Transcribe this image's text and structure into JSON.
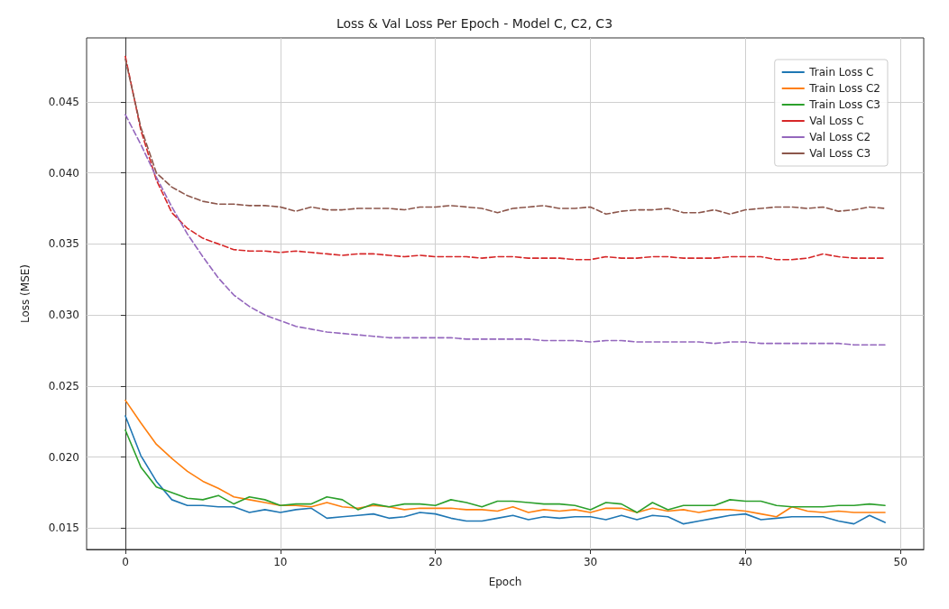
{
  "chart_data": {
    "type": "line",
    "title": "Loss & Val Loss Per Epoch - Model C, C2, C3",
    "xlabel": "Epoch",
    "ylabel": "Loss (MSE)",
    "x": [
      0,
      1,
      2,
      3,
      4,
      5,
      6,
      7,
      8,
      9,
      10,
      11,
      12,
      13,
      14,
      15,
      16,
      17,
      18,
      19,
      20,
      21,
      22,
      23,
      24,
      25,
      26,
      27,
      28,
      29,
      30,
      31,
      32,
      33,
      34,
      35,
      36,
      37,
      38,
      39,
      40,
      41,
      42,
      43,
      44,
      45,
      46,
      47,
      48,
      49
    ],
    "xlim": [
      -2.5,
      51.5
    ],
    "xticks": [
      0,
      10,
      20,
      30,
      40,
      50
    ],
    "ylim": [
      0.0135,
      0.0495
    ],
    "yticks": [
      0.015,
      {
        "value": 0.02,
        "label": "0.020"
      },
      0.025,
      {
        "value": 0.03,
        "label": "0.030"
      },
      0.035,
      {
        "value": 0.04,
        "label": "0.040"
      },
      0.045
    ],
    "grid": true,
    "legend": "top right",
    "marker": "none",
    "series": [
      {
        "name": "Train Loss C",
        "color": "#1f77b4",
        "line_style": "solid",
        "values": [
          0.0229,
          0.0201,
          0.0183,
          0.017,
          0.0166,
          0.0166,
          0.0165,
          0.0165,
          0.0161,
          0.0163,
          0.0161,
          0.0163,
          0.0164,
          0.0157,
          0.0158,
          0.0159,
          0.016,
          0.0157,
          0.0158,
          0.0161,
          0.016,
          0.0157,
          0.0155,
          0.0155,
          0.0157,
          0.0159,
          0.0156,
          0.0158,
          0.0157,
          0.0158,
          0.0158,
          0.0156,
          0.0159,
          0.0156,
          0.0159,
          0.0158,
          0.0153,
          0.0155,
          0.0157,
          0.0159,
          0.016,
          0.0156,
          0.0157,
          0.0158,
          0.0158,
          0.0158,
          0.0155,
          0.0153,
          0.0159,
          0.0154
        ]
      },
      {
        "name": "Train Loss C2",
        "color": "#ff7f0e",
        "line_style": "solid",
        "values": [
          0.024,
          0.0224,
          0.0209,
          0.0199,
          0.019,
          0.0183,
          0.0178,
          0.0172,
          0.017,
          0.0168,
          0.0166,
          0.0166,
          0.0165,
          0.0168,
          0.0165,
          0.0164,
          0.0166,
          0.0165,
          0.0163,
          0.0164,
          0.0164,
          0.0164,
          0.0163,
          0.0163,
          0.0162,
          0.0165,
          0.0161,
          0.0163,
          0.0162,
          0.0163,
          0.0161,
          0.0164,
          0.0164,
          0.0161,
          0.0164,
          0.0162,
          0.0163,
          0.0161,
          0.0163,
          0.0163,
          0.0162,
          0.016,
          0.0158,
          0.0165,
          0.0162,
          0.0161,
          0.0162,
          0.0161,
          0.0161,
          0.0161
        ]
      },
      {
        "name": "Train Loss C3",
        "color": "#2ca02c",
        "line_style": "solid",
        "values": [
          0.0219,
          0.0193,
          0.0179,
          0.0175,
          0.0171,
          0.017,
          0.0173,
          0.0167,
          0.0172,
          0.017,
          0.0166,
          0.0167,
          0.0167,
          0.0172,
          0.017,
          0.0163,
          0.0167,
          0.0165,
          0.0167,
          0.0167,
          0.0166,
          0.017,
          0.0168,
          0.0165,
          0.0169,
          0.0169,
          0.0168,
          0.0167,
          0.0167,
          0.0166,
          0.0163,
          0.0168,
          0.0167,
          0.0161,
          0.0168,
          0.0163,
          0.0166,
          0.0166,
          0.0166,
          0.017,
          0.0169,
          0.0169,
          0.0166,
          0.0165,
          0.0165,
          0.0165,
          0.0166,
          0.0166,
          0.0167,
          0.0166
        ]
      },
      {
        "name": "Val Loss C",
        "color": "#d62728",
        "line_style": "dashed",
        "values": [
          0.0482,
          0.043,
          0.0395,
          0.0372,
          0.0361,
          0.0354,
          0.035,
          0.0346,
          0.0345,
          0.0345,
          0.0344,
          0.0345,
          0.0344,
          0.0343,
          0.0342,
          0.0343,
          0.0343,
          0.0342,
          0.0341,
          0.0342,
          0.0341,
          0.0341,
          0.0341,
          0.034,
          0.0341,
          0.0341,
          0.034,
          0.034,
          0.034,
          0.0339,
          0.0339,
          0.0341,
          0.034,
          0.034,
          0.0341,
          0.0341,
          0.034,
          0.034,
          0.034,
          0.0341,
          0.0341,
          0.0341,
          0.0339,
          0.0339,
          0.034,
          0.0343,
          0.0341,
          0.034,
          0.034,
          0.034
        ]
      },
      {
        "name": "Val Loss C2",
        "color": "#9467bd",
        "line_style": "dashed",
        "values": [
          0.0441,
          0.042,
          0.0397,
          0.0376,
          0.0357,
          0.0341,
          0.0326,
          0.0314,
          0.0306,
          0.03,
          0.0296,
          0.0292,
          0.029,
          0.0288,
          0.0287,
          0.0286,
          0.0285,
          0.0284,
          0.0284,
          0.0284,
          0.0284,
          0.0284,
          0.0283,
          0.0283,
          0.0283,
          0.0283,
          0.0283,
          0.0282,
          0.0282,
          0.0282,
          0.0281,
          0.0282,
          0.0282,
          0.0281,
          0.0281,
          0.0281,
          0.0281,
          0.0281,
          0.028,
          0.0281,
          0.0281,
          0.028,
          0.028,
          0.028,
          0.028,
          0.028,
          0.028,
          0.0279,
          0.0279,
          0.0279
        ]
      },
      {
        "name": "Val Loss C3",
        "color": "#8c564b",
        "line_style": "dashed",
        "values": [
          0.048,
          0.0432,
          0.04,
          0.039,
          0.0384,
          0.038,
          0.0378,
          0.0378,
          0.0377,
          0.0377,
          0.0376,
          0.0373,
          0.0376,
          0.0374,
          0.0374,
          0.0375,
          0.0375,
          0.0375,
          0.0374,
          0.0376,
          0.0376,
          0.0377,
          0.0376,
          0.0375,
          0.0372,
          0.0375,
          0.0376,
          0.0377,
          0.0375,
          0.0375,
          0.0376,
          0.0371,
          0.0373,
          0.0374,
          0.0374,
          0.0375,
          0.0372,
          0.0372,
          0.0374,
          0.0371,
          0.0374,
          0.0375,
          0.0376,
          0.0376,
          0.0375,
          0.0376,
          0.0373,
          0.0374,
          0.0376,
          0.0375
        ]
      }
    ]
  }
}
